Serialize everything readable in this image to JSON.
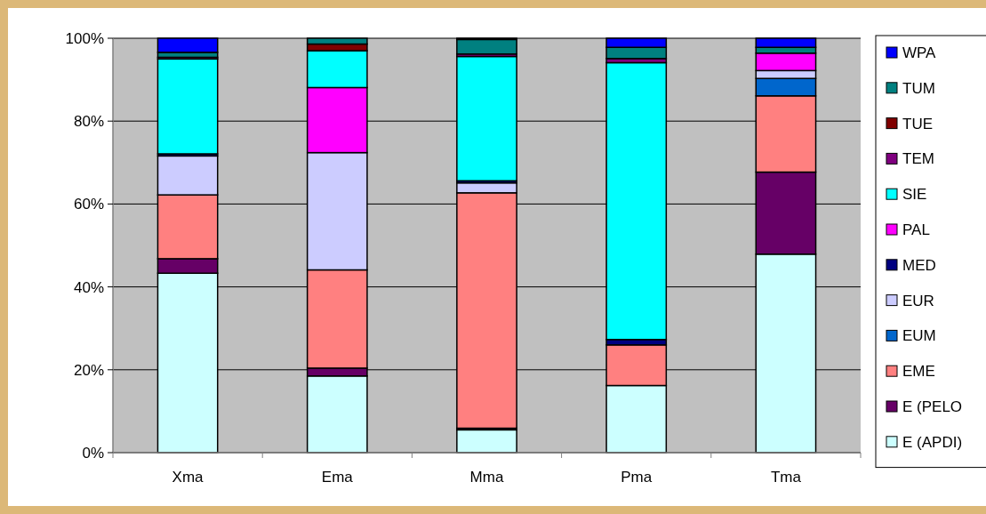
{
  "chart_data": {
    "type": "bar",
    "stacked": true,
    "categories": [
      "Xma",
      "Ema",
      "Mma",
      "Pma",
      "Tma"
    ],
    "ylim": [
      0,
      100
    ],
    "yticks": [
      {
        "value": 0,
        "label": "0%"
      },
      {
        "value": 20,
        "label": "20%"
      },
      {
        "value": 40,
        "label": "40%"
      },
      {
        "value": 60,
        "label": "60%"
      },
      {
        "value": 80,
        "label": "80%"
      },
      {
        "value": 100,
        "label": "100%"
      }
    ],
    "grid": "y",
    "legend": "right",
    "series": [
      {
        "name": "E (APDI)",
        "color": "#ccffff",
        "values": [
          43.3,
          18.5,
          5.5,
          16.2,
          47.9
        ]
      },
      {
        "name": "E (PELO",
        "color": "#660066",
        "values": [
          3.5,
          1.9,
          0.4,
          0,
          19.8
        ]
      },
      {
        "name": "EME",
        "color": "#ff8080",
        "values": [
          15.4,
          23.7,
          56.8,
          9.8,
          18.4
        ]
      },
      {
        "name": "EUM",
        "color": "#0066cc",
        "values": [
          0,
          0,
          0,
          0,
          4.2
        ]
      },
      {
        "name": "EUR",
        "color": "#ccccff",
        "values": [
          9.4,
          28.3,
          2.4,
          0,
          1.9
        ]
      },
      {
        "name": "MED",
        "color": "#000080",
        "values": [
          0.5,
          0,
          0.5,
          1.3,
          0
        ]
      },
      {
        "name": "PAL",
        "color": "#ff00ff",
        "values": [
          0,
          15.7,
          0,
          0,
          4.2
        ]
      },
      {
        "name": "SIE",
        "color": "#00ffff",
        "values": [
          22.9,
          8.9,
          30.0,
          66.8,
          0
        ]
      },
      {
        "name": "TEM",
        "color": "#800080",
        "values": [
          0.4,
          0,
          0.6,
          1.0,
          0
        ]
      },
      {
        "name": "TUE",
        "color": "#800000",
        "values": [
          0,
          1.6,
          0,
          0,
          0
        ]
      },
      {
        "name": "TUM",
        "color": "#008080",
        "values": [
          1.2,
          1.4,
          3.5,
          2.7,
          1.4
        ]
      },
      {
        "name": "WPA",
        "color": "#0000ff",
        "values": [
          3.4,
          0,
          0.3,
          2.2,
          2.2
        ]
      }
    ]
  }
}
